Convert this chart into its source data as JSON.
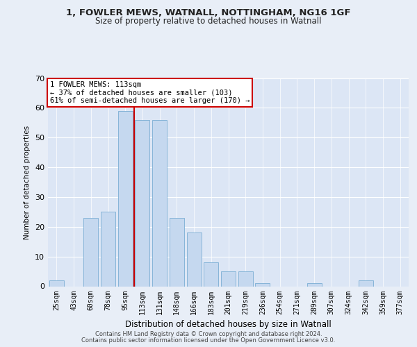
{
  "title1": "1, FOWLER MEWS, WATNALL, NOTTINGHAM, NG16 1GF",
  "title2": "Size of property relative to detached houses in Watnall",
  "xlabel": "Distribution of detached houses by size in Watnall",
  "ylabel": "Number of detached properties",
  "bar_color": "#c5d8ef",
  "bar_edge_color": "#7aadd4",
  "categories": [
    "25sqm",
    "43sqm",
    "60sqm",
    "78sqm",
    "95sqm",
    "113sqm",
    "131sqm",
    "148sqm",
    "166sqm",
    "183sqm",
    "201sqm",
    "219sqm",
    "236sqm",
    "254sqm",
    "271sqm",
    "289sqm",
    "307sqm",
    "324sqm",
    "342sqm",
    "359sqm",
    "377sqm"
  ],
  "values": [
    2,
    0,
    23,
    25,
    59,
    56,
    56,
    23,
    18,
    8,
    5,
    5,
    1,
    0,
    0,
    1,
    0,
    0,
    2,
    0,
    0
  ],
  "vline_index": 5,
  "highlight_label": "1 FOWLER MEWS: 113sqm",
  "annotation_line1": "← 37% of detached houses are smaller (103)",
  "annotation_line2": "61% of semi-detached houses are larger (170) →",
  "vline_color": "#cc0000",
  "annotation_box_color": "#ffffff",
  "annotation_box_edge": "#cc0000",
  "ylim": [
    0,
    70
  ],
  "yticks": [
    0,
    10,
    20,
    30,
    40,
    50,
    60,
    70
  ],
  "bg_color": "#e8eef7",
  "plot_bg_color": "#dce6f5",
  "footer1": "Contains HM Land Registry data © Crown copyright and database right 2024.",
  "footer2": "Contains public sector information licensed under the Open Government Licence v3.0."
}
